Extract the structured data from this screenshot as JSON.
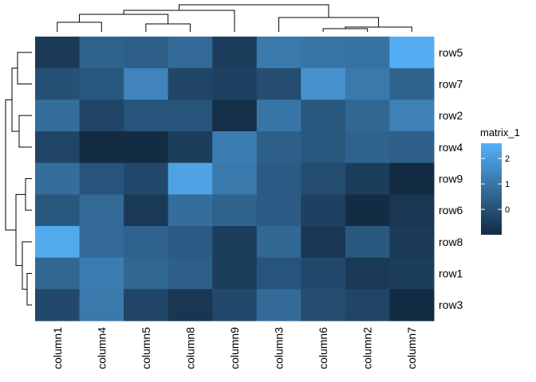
{
  "chart_data": {
    "type": "heatmap",
    "title": "",
    "rows": [
      "row5",
      "row7",
      "row2",
      "row4",
      "row9",
      "row6",
      "row8",
      "row1",
      "row3"
    ],
    "columns": [
      "column1",
      "column4",
      "column5",
      "column8",
      "column9",
      "column3",
      "column6",
      "column2",
      "column7"
    ],
    "values": [
      [
        -0.6,
        0.5,
        0.4,
        0.7,
        -0.5,
        1.1,
        1.0,
        0.9,
        2.5
      ],
      [
        0.0,
        0.2,
        1.4,
        -0.3,
        -0.4,
        -0.1,
        1.8,
        1.1,
        0.5
      ],
      [
        0.8,
        -0.3,
        0.1,
        0.1,
        -0.9,
        1.0,
        0.2,
        0.6,
        1.3
      ],
      [
        -0.3,
        -1.0,
        -1.0,
        -0.5,
        1.2,
        0.4,
        0.2,
        0.5,
        0.4
      ],
      [
        0.8,
        0.1,
        -0.2,
        2.2,
        1.1,
        0.3,
        -0.1,
        -0.5,
        -1.0
      ],
      [
        0.2,
        0.7,
        -0.6,
        0.8,
        0.5,
        0.3,
        -0.4,
        -1.0,
        -0.7
      ],
      [
        2.4,
        0.7,
        0.5,
        0.3,
        -0.5,
        0.6,
        -0.7,
        0.2,
        -0.6
      ],
      [
        0.6,
        1.2,
        0.6,
        0.4,
        -0.5,
        0.1,
        -0.2,
        -0.6,
        -0.5
      ],
      [
        -0.2,
        1.1,
        -0.3,
        -0.7,
        -0.2,
        0.7,
        -0.1,
        -0.3,
        -1.0
      ]
    ],
    "legend": {
      "title": "matrix_1",
      "ticks": [
        2,
        1,
        0
      ],
      "range": [
        -1.0,
        2.6
      ],
      "placement": "right"
    },
    "color_scale": [
      "#132b43",
      "#56b1f7"
    ],
    "row_dendrogram": true,
    "column_dendrogram": true
  }
}
